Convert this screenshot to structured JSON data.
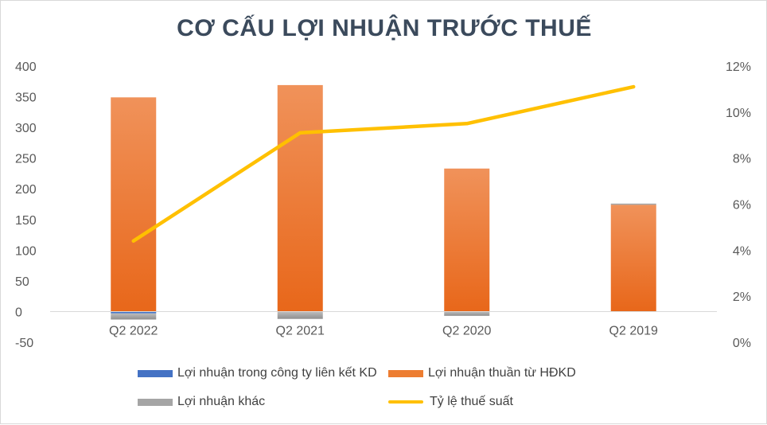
{
  "chart_data": {
    "type": "bar",
    "title": "CƠ CẤU LỢI NHUẬN TRƯỚC THUẾ",
    "categories": [
      "Q2 2022",
      "Q2 2021",
      "Q2 2020",
      "Q2 2019"
    ],
    "y_left": {
      "min": -50,
      "max": 400,
      "step": 50,
      "ticks": [
        "400",
        "350",
        "300",
        "250",
        "200",
        "150",
        "100",
        "50",
        "0",
        "-50"
      ]
    },
    "y_right": {
      "min": 0,
      "max": 12,
      "step": 2,
      "ticks": [
        "12%",
        "10%",
        "8%",
        "6%",
        "4%",
        "2%",
        "0%"
      ]
    },
    "series": [
      {
        "name": "Lợi nhuận trong công ty liên kết KD",
        "type": "bar",
        "axis": "left",
        "color": "#4472c4",
        "values": [
          -3,
          0,
          0,
          0
        ]
      },
      {
        "name": "Lợi nhuận thuần từ HĐKD",
        "type": "bar",
        "axis": "left",
        "color": "#ed7d31",
        "values": [
          349,
          369,
          233,
          174
        ]
      },
      {
        "name": "Lợi nhuận khác",
        "type": "bar",
        "axis": "left",
        "color": "#a5a5a5",
        "values": [
          -10,
          -12,
          -7,
          2
        ]
      },
      {
        "name": "Tỷ lệ thuế suất",
        "type": "line",
        "axis": "right",
        "color": "#ffc000",
        "values": [
          4.4,
          9.1,
          9.5,
          11.1
        ]
      }
    ],
    "legend_position": "bottom",
    "grid": false
  }
}
